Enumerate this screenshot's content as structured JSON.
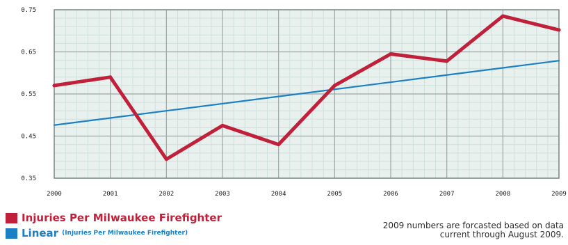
{
  "chart_data": {
    "type": "line",
    "title": "",
    "xlabel": "",
    "ylabel": "",
    "x": [
      2000,
      2001,
      2002,
      2003,
      2004,
      2005,
      2006,
      2007,
      2008,
      2009
    ],
    "x_tick_labels": [
      "2000",
      "2001",
      "2002",
      "2003",
      "2004",
      "2005",
      "2006",
      "2007",
      "2008",
      "2009"
    ],
    "ylim": [
      0.35,
      0.75
    ],
    "y_ticks": [
      0.35,
      0.45,
      0.55,
      0.65,
      0.75
    ],
    "y_tick_labels": [
      "0.35",
      "0.45",
      "0.55",
      "0.65",
      "0.75"
    ],
    "grid": true,
    "legend_position": "bottom-left",
    "series": [
      {
        "name": "Injuries Per Milwaukee Firefighter",
        "color": "#c0203a",
        "values": [
          0.57,
          0.59,
          0.395,
          0.475,
          0.43,
          0.57,
          0.645,
          0.628,
          0.735,
          0.702
        ]
      },
      {
        "name": "Linear",
        "name_note": "(Injuries Per Milwaukee Firefighter)",
        "color": "#1b7fc4",
        "values": [
          0.476,
          0.493,
          0.51,
          0.527,
          0.544,
          0.561,
          0.578,
          0.595,
          0.612,
          0.629
        ]
      }
    ],
    "annotation": "2009 numbers are forcasted based on data current through August 2009."
  }
}
